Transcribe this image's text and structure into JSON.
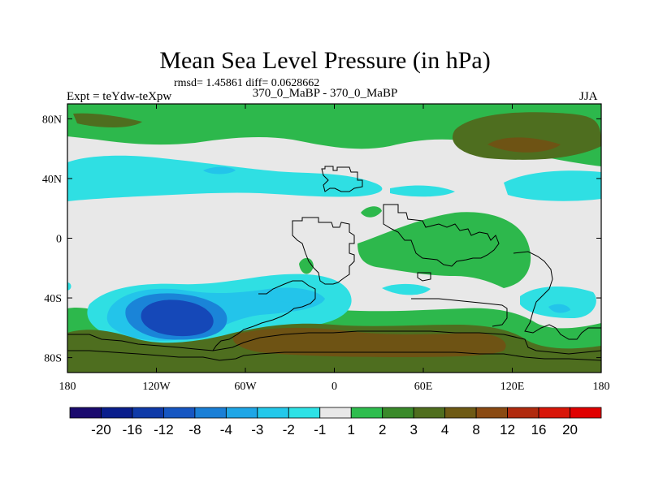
{
  "title": "Mean Sea Level Pressure (in hPa)",
  "stats": "rmsd= 1.45861 diff= 0.0628662",
  "left_label": "Expt = teYdw-teXpw",
  "center_label": "370_0_MaBP - 370_0_MaBP",
  "right_label": "JJA",
  "map": {
    "lon_ticks": [
      "180",
      "120W",
      "60W",
      "0",
      "60E",
      "120E",
      "180"
    ],
    "lat_ticks": [
      "80N",
      "40N",
      "0",
      "40S",
      "80S"
    ]
  },
  "colorbar": {
    "labels": [
      "-20",
      "-16",
      "-12",
      "-8",
      "-4",
      "-3",
      "-2",
      "-1",
      "1",
      "2",
      "3",
      "4",
      "8",
      "12",
      "16",
      "20"
    ],
    "colors": [
      "#1a0a6e",
      "#0a1e8c",
      "#0f3aa8",
      "#1656c2",
      "#1a7fd6",
      "#1fa6e6",
      "#24c8ea",
      "#2ee2e6",
      "#e8e8e8",
      "#2ebd4e",
      "#3a8a2a",
      "#4f6e1e",
      "#6e5a14",
      "#8a4a12",
      "#b02a0e",
      "#d81608",
      "#e00000"
    ]
  },
  "colors": {
    "cyan": "#2fdfe3",
    "light_blue": "#23c4ea",
    "mid_blue": "#1a84d8",
    "deep_blue": "#1548b8",
    "green": "#2db84c",
    "olive": "#4e6e1f",
    "brown": "#6e5314",
    "neutral": "#e8e8e8"
  }
}
